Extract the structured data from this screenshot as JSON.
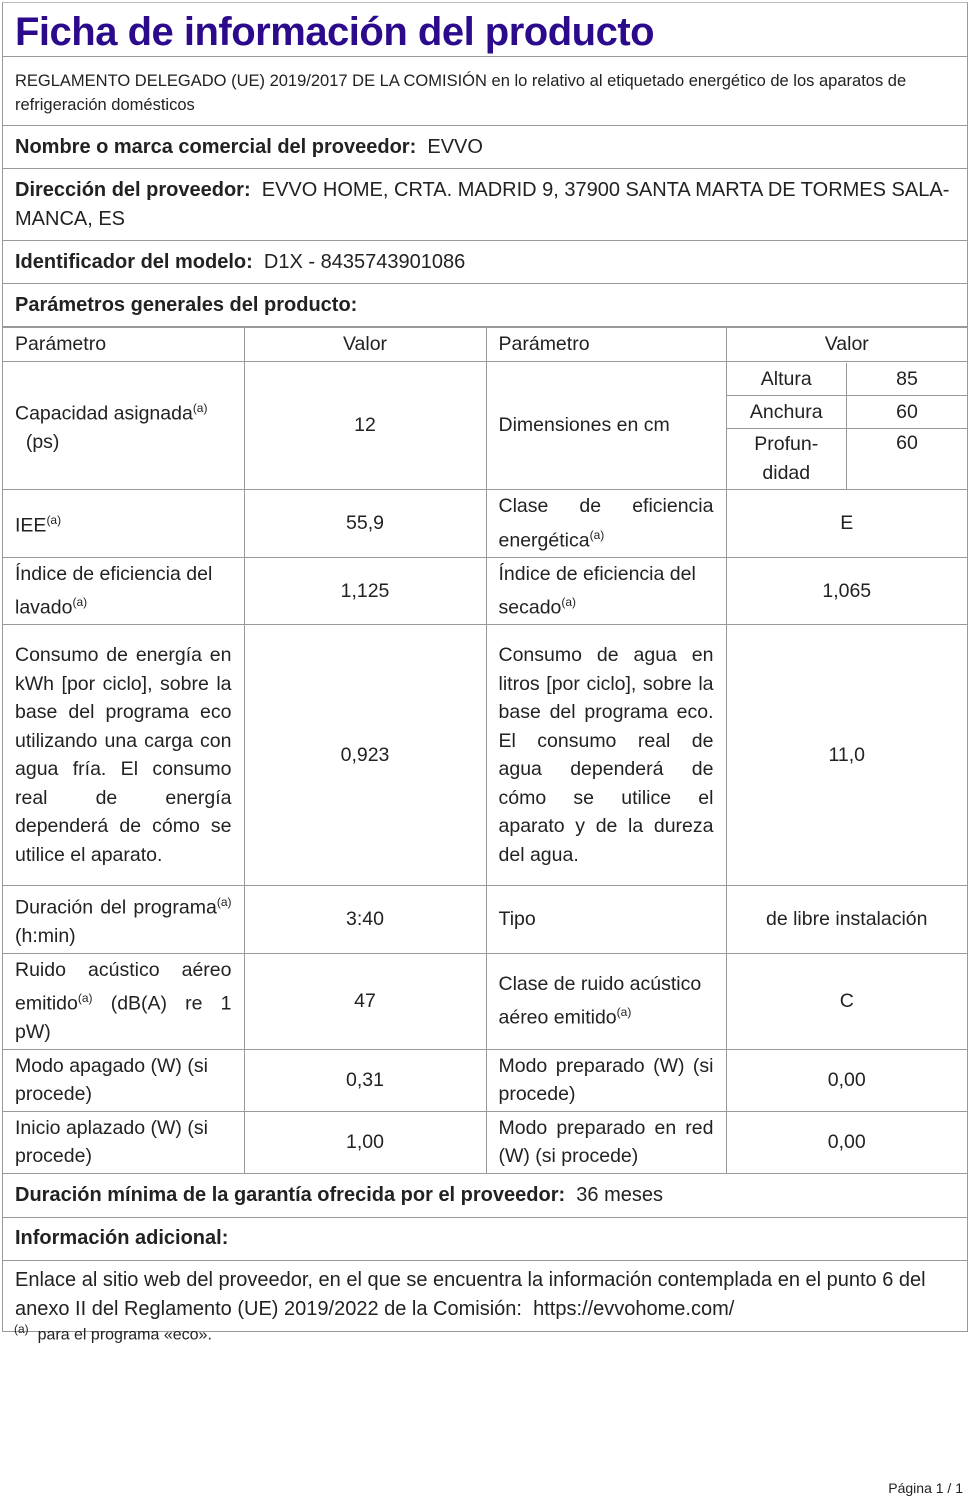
{
  "title": "Ficha de información del producto",
  "regulation": "REGLAMENTO DELEGADO (UE) 2019/2017 DE LA COMISIÓN en lo relativo al etiquetado energético de los aparatos de refrigeración domésticos",
  "supplier": {
    "name_label": "Nombre o marca comercial del proveedor:",
    "name": "EVVO",
    "address_label": "Dirección del proveedor:",
    "address": "EVVO HOME, CRTA. MADRID 9, 37900 SANTA MARTA DE TORMES SALA-MANCA, ES",
    "model_label": "Identificador del modelo:",
    "model": "D1X - 8435743901086",
    "params_label": "Parámetros generales del producto:"
  },
  "table": {
    "headers": [
      "Parámetro",
      "Valor",
      "Parámetro",
      "Valor"
    ],
    "sup": "(a)",
    "capacity": {
      "label": "Capacidad asignada",
      "unit": "(ps)",
      "value": "12"
    },
    "dimensions": {
      "label": "Dimensiones en cm",
      "items": [
        {
          "name": "Altura",
          "value": "85"
        },
        {
          "name": "Anchura",
          "value": "60"
        },
        {
          "name": "Profun-didad",
          "value": "60"
        }
      ]
    },
    "iee": {
      "label": "IEE",
      "value": "55,9"
    },
    "energy_class": {
      "label": "Clase de eficiencia energética",
      "value": "E"
    },
    "wash_index": {
      "label": "Índice de eficiencia del lavado",
      "value": "1,125"
    },
    "dry_index": {
      "label": "Índice de eficiencia del secado",
      "value": "1,065"
    },
    "energy": {
      "label": "Consumo de energía en kWh [por ciclo], sobre la base del programa eco utilizando una carga con agua fría. El consumo real de energía dependerá de cómo se utilice el aparato.",
      "value": "0,923"
    },
    "water": {
      "label": "Consumo de agua en litros [por ciclo], sobre la base del programa eco. El consumo real de agua dependerá de cómo se utilice el aparato y de la dureza del agua.",
      "value": "11,0"
    },
    "duration": {
      "label": "Duración del programa",
      "unit": "(h:min)",
      "value": "3:40"
    },
    "type": {
      "label": "Tipo",
      "value": "de libre instalación"
    },
    "noise": {
      "label": "Ruido acústico aéreo emitido",
      "unit": "(dB(A) re 1 pW)",
      "value": "47"
    },
    "noise_class": {
      "label": "Clase de ruido acústico aéreo emitido",
      "value": "C"
    },
    "off_mode": {
      "label": "Modo apagado (W) (si procede)",
      "value": "0,31"
    },
    "standby": {
      "label": "Modo preparado (W) (si procede)",
      "value": "0,00"
    },
    "delay": {
      "label": "Inicio aplazado (W) (si procede)",
      "value": "1,00"
    },
    "net_standby": {
      "label": "Modo preparado en red (W) (si procede)",
      "value": "0,00"
    }
  },
  "warranty": {
    "label": "Duración mínima de la garantía ofrecida por el proveedor:",
    "value": "36 meses"
  },
  "additional": {
    "label": "Información adicional:",
    "text": "Enlace al sitio web del proveedor, en el que se encuentra la información contemplada en el punto 6 del anexo II del Reglamento (UE) 2019/2022 de la Comisión:",
    "url": "https://evvohome.com/"
  },
  "footnote": {
    "mark": "(a)",
    "text": "para el programa «eco»."
  },
  "page": "Página 1 / 1"
}
